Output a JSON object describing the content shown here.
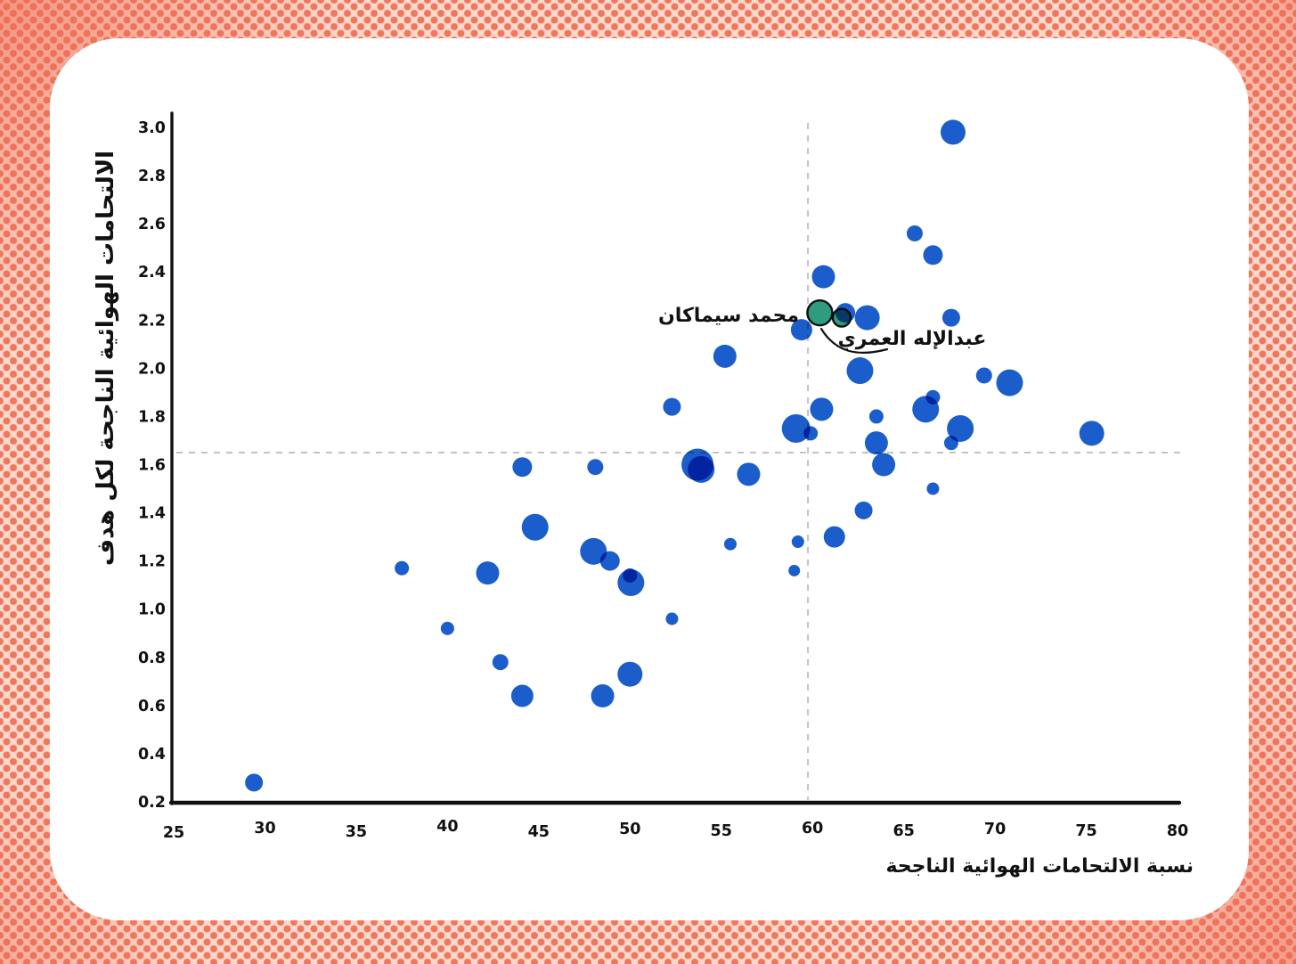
{
  "page": {
    "background_base_color": "#fbd8cb",
    "background_dot_color": "#f0775e",
    "card_color": "#ffffff"
  },
  "chart_data": {
    "type": "scatter",
    "subtype": "bubble",
    "title": "",
    "xlabel": "نسبة الالتحامات الهوائية الناجحة",
    "ylabel": "الالتحامات الهوائية الناجحة لكل هدف",
    "xlim": [
      25,
      80
    ],
    "ylim": [
      0.2,
      3.0
    ],
    "grid": false,
    "legend_position": "none",
    "point_color": "#1b5ecb",
    "highlight_color": "#2f9c80",
    "reference_line_color": "#c2c2c2",
    "x_ticks": [
      25,
      30,
      35,
      40,
      45,
      50,
      55,
      60,
      65,
      70,
      75,
      80
    ],
    "x_tick_labels": [
      "25",
      "30",
      "35",
      "40",
      "45",
      "50",
      "55",
      "60",
      "65",
      "70",
      "75",
      "80"
    ],
    "y_ticks": [
      0.2,
      0.4,
      0.6,
      0.8,
      1.0,
      1.2,
      1.4,
      1.6,
      1.8,
      2.0,
      2.2,
      2.4,
      2.6,
      2.8,
      3.0
    ],
    "y_tick_labels": [
      "0.2",
      "0.4",
      "0.6",
      "0.8",
      "1.0",
      "1.2",
      "1.4",
      "1.6",
      "1.8",
      "2.0",
      "2.2",
      "2.4",
      "2.6",
      "2.8",
      "3.0"
    ],
    "reference_lines": {
      "x": 59.75,
      "y": 1.65,
      "style": "dashed"
    },
    "points": [
      {
        "x": 29.4,
        "y": 0.28,
        "r": 10
      },
      {
        "x": 37.5,
        "y": 1.17,
        "r": 8
      },
      {
        "x": 40.0,
        "y": 0.92,
        "r": 7.5
      },
      {
        "x": 42.2,
        "y": 1.15,
        "r": 13
      },
      {
        "x": 42.9,
        "y": 0.78,
        "r": 9
      },
      {
        "x": 44.1,
        "y": 1.59,
        "r": 11
      },
      {
        "x": 44.1,
        "y": 0.64,
        "r": 12.5
      },
      {
        "x": 44.8,
        "y": 1.34,
        "r": 15
      },
      {
        "x": 48.1,
        "y": 1.59,
        "r": 9
      },
      {
        "x": 48.0,
        "y": 1.24,
        "r": 15
      },
      {
        "x": 48.9,
        "y": 1.2,
        "r": 11
      },
      {
        "x": 48.5,
        "y": 0.64,
        "r": 13
      },
      {
        "x": 50.0,
        "y": 0.73,
        "r": 14
      },
      {
        "x": 50.0,
        "y": 1.14,
        "r": 8
      },
      {
        "x": 50.05,
        "y": 1.11,
        "r": 15
      },
      {
        "x": 52.3,
        "y": 0.96,
        "r": 7
      },
      {
        "x": 52.3,
        "y": 1.84,
        "r": 10
      },
      {
        "x": 53.7,
        "y": 1.6,
        "r": 18
      },
      {
        "x": 53.9,
        "y": 1.58,
        "r": 15
      },
      {
        "x": 55.2,
        "y": 2.05,
        "r": 13
      },
      {
        "x": 56.5,
        "y": 1.56,
        "r": 13
      },
      {
        "x": 55.5,
        "y": 1.27,
        "r": 7
      },
      {
        "x": 59.2,
        "y": 1.28,
        "r": 7
      },
      {
        "x": 59.0,
        "y": 1.16,
        "r": 6.5
      },
      {
        "x": 59.1,
        "y": 1.75,
        "r": 16
      },
      {
        "x": 59.9,
        "y": 1.73,
        "r": 8
      },
      {
        "x": 60.5,
        "y": 1.83,
        "r": 13
      },
      {
        "x": 59.4,
        "y": 2.16,
        "r": 12
      },
      {
        "x": 60.6,
        "y": 2.38,
        "r": 13
      },
      {
        "x": 61.8,
        "y": 2.23,
        "r": 11
      },
      {
        "x": 63.0,
        "y": 2.21,
        "r": 14
      },
      {
        "x": 67.6,
        "y": 2.21,
        "r": 10
      },
      {
        "x": 62.6,
        "y": 1.99,
        "r": 15
      },
      {
        "x": 69.4,
        "y": 1.97,
        "r": 9
      },
      {
        "x": 70.8,
        "y": 1.94,
        "r": 15
      },
      {
        "x": 65.6,
        "y": 2.56,
        "r": 9
      },
      {
        "x": 66.6,
        "y": 2.47,
        "r": 11
      },
      {
        "x": 67.7,
        "y": 2.98,
        "r": 14
      },
      {
        "x": 66.2,
        "y": 1.83,
        "r": 15
      },
      {
        "x": 66.6,
        "y": 1.88,
        "r": 8
      },
      {
        "x": 63.5,
        "y": 1.8,
        "r": 8
      },
      {
        "x": 68.1,
        "y": 1.75,
        "r": 15
      },
      {
        "x": 67.6,
        "y": 1.69,
        "r": 8
      },
      {
        "x": 63.5,
        "y": 1.69,
        "r": 13
      },
      {
        "x": 63.9,
        "y": 1.6,
        "r": 13
      },
      {
        "x": 66.6,
        "y": 1.5,
        "r": 7
      },
      {
        "x": 62.8,
        "y": 1.41,
        "r": 10
      },
      {
        "x": 61.2,
        "y": 1.3,
        "r": 12
      },
      {
        "x": 75.3,
        "y": 1.73,
        "r": 14
      }
    ],
    "highlighted_points": [
      {
        "x": 60.4,
        "y": 2.23,
        "r": 14,
        "label": "محمد سيماكان"
      },
      {
        "x": 61.6,
        "y": 2.21,
        "r": 10,
        "label": "عبدالإله العمري"
      }
    ]
  }
}
